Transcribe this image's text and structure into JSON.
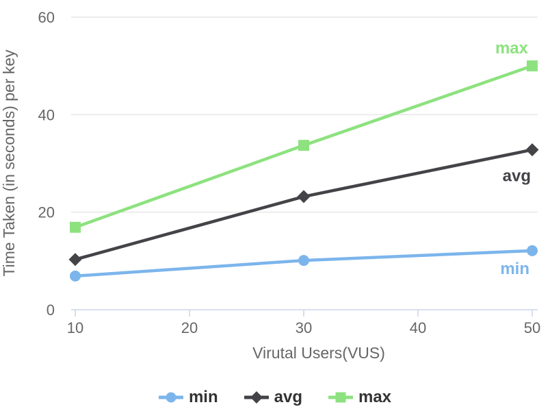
{
  "chart_data": {
    "type": "line",
    "xlabel": "Virutal Users(VUS)",
    "ylabel": "Time Taken (in seconds) per key",
    "x": [
      10,
      30,
      50
    ],
    "series": [
      {
        "name": "min",
        "values": [
          6.9,
          10.1,
          12.1
        ],
        "color": "#7cb5ec",
        "marker": "circle"
      },
      {
        "name": "avg",
        "values": [
          10.3,
          23.2,
          32.8
        ],
        "color": "#434348",
        "marker": "diamond"
      },
      {
        "name": "max",
        "values": [
          16.9,
          33.7,
          50
        ],
        "color": "#8de27f",
        "marker": "square"
      }
    ],
    "xlim": [
      10,
      50
    ],
    "ylim": [
      0,
      60
    ],
    "xticks": [
      10,
      20,
      30,
      40,
      50
    ],
    "yticks": [
      0,
      20,
      40,
      60
    ],
    "grid": true,
    "legend_position": "bottom-center",
    "series_end_labels": true
  },
  "colors": {
    "background": "#ffffff",
    "grid": "#e6e6e6",
    "axis_line": "#ccd6eb",
    "tick_label": "#666666",
    "axis_title": "#666666",
    "legend_text": "#333333"
  },
  "legend": {
    "items": [
      {
        "label": "min",
        "color": "#7cb5ec",
        "marker": "circle"
      },
      {
        "label": "avg",
        "color": "#434348",
        "marker": "diamond"
      },
      {
        "label": "max",
        "color": "#8de27f",
        "marker": "square"
      }
    ]
  }
}
